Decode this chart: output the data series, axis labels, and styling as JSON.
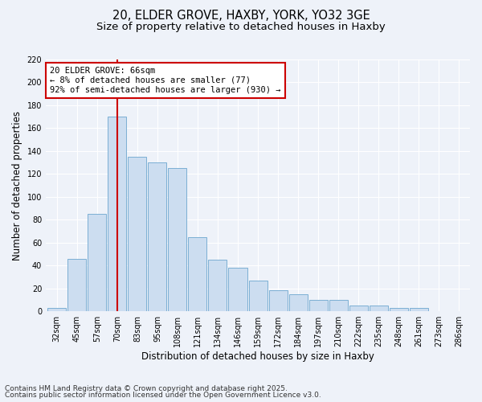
{
  "title_line1": "20, ELDER GROVE, HAXBY, YORK, YO32 3GE",
  "title_line2": "Size of property relative to detached houses in Haxby",
  "xlabel": "Distribution of detached houses by size in Haxby",
  "ylabel": "Number of detached properties",
  "categories": [
    "32sqm",
    "45sqm",
    "57sqm",
    "70sqm",
    "83sqm",
    "95sqm",
    "108sqm",
    "121sqm",
    "134sqm",
    "146sqm",
    "159sqm",
    "172sqm",
    "184sqm",
    "197sqm",
    "210sqm",
    "222sqm",
    "235sqm",
    "248sqm",
    "261sqm",
    "273sqm",
    "286sqm"
  ],
  "values": [
    3,
    46,
    85,
    170,
    135,
    130,
    125,
    65,
    45,
    38,
    27,
    18,
    15,
    10,
    10,
    5,
    5,
    3,
    3,
    0,
    0
  ],
  "bar_color": "#ccddf0",
  "bar_edge_color": "#7bafd4",
  "vline_x_index": 3,
  "vline_color": "#cc0000",
  "annotation_text": "20 ELDER GROVE: 66sqm\n← 8% of detached houses are smaller (77)\n92% of semi-detached houses are larger (930) →",
  "annotation_box_color": "#ffffff",
  "annotation_box_edge": "#cc0000",
  "ylim": [
    0,
    220
  ],
  "yticks": [
    0,
    20,
    40,
    60,
    80,
    100,
    120,
    140,
    160,
    180,
    200,
    220
  ],
  "footer_line1": "Contains HM Land Registry data © Crown copyright and database right 2025.",
  "footer_line2": "Contains public sector information licensed under the Open Government Licence v3.0.",
  "background_color": "#eef2f9",
  "grid_color": "#ffffff",
  "title_fontsize": 10.5,
  "subtitle_fontsize": 9.5,
  "axis_label_fontsize": 8.5,
  "tick_fontsize": 7,
  "annotation_fontsize": 7.5,
  "footer_fontsize": 6.5
}
